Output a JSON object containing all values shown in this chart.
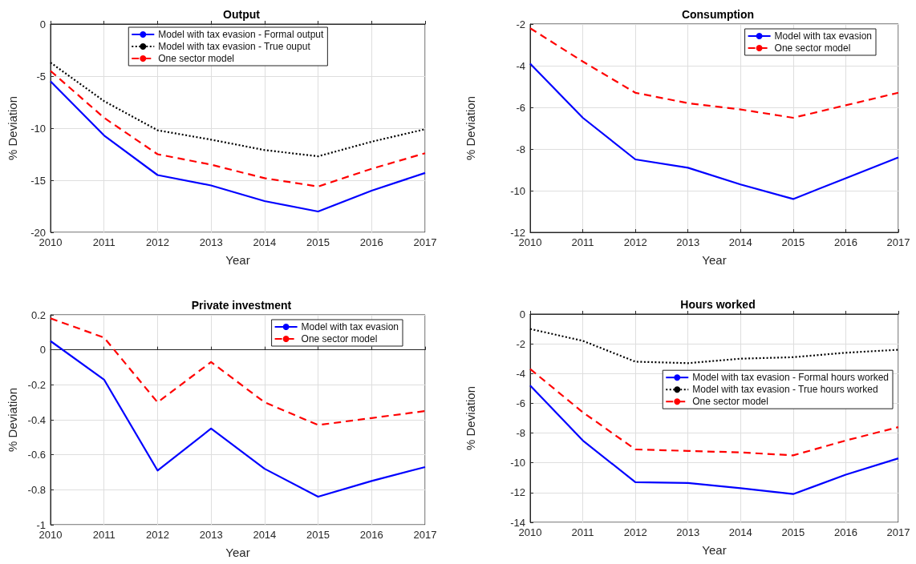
{
  "chart_data": [
    {
      "type": "line",
      "title": "Output",
      "xlabel": "Year",
      "ylabel": "% Deviation",
      "x": [
        2010,
        2011,
        2012,
        2013,
        2014,
        2015,
        2016,
        2017
      ],
      "xlim": [
        2010,
        2017
      ],
      "xticks": [
        2010,
        2011,
        2012,
        2013,
        2014,
        2015,
        2016,
        2017
      ],
      "ylim": [
        -20,
        0
      ],
      "yticks": [
        -20,
        -15,
        -10,
        -5,
        0
      ],
      "grid": true,
      "legend": "top",
      "marker": "none",
      "series": [
        {
          "name": "Model with tax evasion - Formal output",
          "color": "#0000ff",
          "line_style": "solid",
          "values": [
            -5.5,
            -10.7,
            -14.5,
            -15.5,
            -17.0,
            -18.0,
            -16.0,
            -14.3
          ]
        },
        {
          "name": "Model with tax evasion - True ouput",
          "color": "#000000",
          "line_style": "dotted",
          "values": [
            -3.7,
            -7.4,
            -10.2,
            -11.1,
            -12.1,
            -12.7,
            -11.3,
            -10.1
          ]
        },
        {
          "name": "One sector model",
          "color": "#ff0000",
          "line_style": "dashed",
          "values": [
            -4.5,
            -9.0,
            -12.5,
            -13.5,
            -14.8,
            -15.6,
            -13.9,
            -12.4
          ]
        }
      ]
    },
    {
      "type": "line",
      "title": "Consumption",
      "xlabel": "Year",
      "ylabel": "% Deviation",
      "x": [
        2010,
        2011,
        2012,
        2013,
        2014,
        2015,
        2016,
        2017
      ],
      "xlim": [
        2010,
        2017
      ],
      "xticks": [
        2010,
        2011,
        2012,
        2013,
        2014,
        2015,
        2016,
        2017
      ],
      "ylim": [
        -12,
        -2
      ],
      "yticks": [
        -12,
        -10,
        -8,
        -6,
        -4,
        -2
      ],
      "grid": true,
      "legend": "top right",
      "marker": "none",
      "series": [
        {
          "name": "Model with tax evasion",
          "color": "#0000ff",
          "line_style": "solid",
          "values": [
            -3.9,
            -6.5,
            -8.5,
            -8.9,
            -9.7,
            -10.4,
            -9.4,
            -8.4
          ]
        },
        {
          "name": "One sector model",
          "color": "#ff0000",
          "line_style": "dashed",
          "values": [
            -2.2,
            -3.8,
            -5.3,
            -5.8,
            -6.1,
            -6.5,
            -5.9,
            -5.3
          ]
        }
      ]
    },
    {
      "type": "line",
      "title": "Private investment",
      "xlabel": "Year",
      "ylabel": "% Deviation",
      "x": [
        2010,
        2011,
        2012,
        2013,
        2014,
        2015,
        2016,
        2017
      ],
      "xlim": [
        2010,
        2017
      ],
      "xticks": [
        2010,
        2011,
        2012,
        2013,
        2014,
        2015,
        2016,
        2017
      ],
      "ylim": [
        -1,
        0.2
      ],
      "yticks": [
        -1,
        -0.8,
        -0.6,
        -0.4,
        -0.2,
        0,
        0.2
      ],
      "grid": true,
      "legend": "top right",
      "marker": "none",
      "series": [
        {
          "name": "Model with tax evasion",
          "color": "#0000ff",
          "line_style": "solid",
          "values": [
            0.05,
            -0.17,
            -0.69,
            -0.45,
            -0.68,
            -0.84,
            -0.75,
            -0.67
          ]
        },
        {
          "name": "One sector model",
          "color": "#ff0000",
          "line_style": "dashed",
          "values": [
            0.18,
            0.07,
            -0.3,
            -0.07,
            -0.3,
            -0.43,
            -0.39,
            -0.35
          ]
        }
      ]
    },
    {
      "type": "line",
      "title": "Hours worked",
      "xlabel": "Year",
      "ylabel": "% Deviation",
      "x": [
        2010,
        2011,
        2012,
        2013,
        2014,
        2015,
        2016,
        2017
      ],
      "xlim": [
        2010,
        2017
      ],
      "xticks": [
        2010,
        2011,
        2012,
        2013,
        2014,
        2015,
        2016,
        2017
      ],
      "ylim": [
        -14,
        0
      ],
      "yticks": [
        -14,
        -12,
        -10,
        -8,
        -6,
        -4,
        -2,
        0
      ],
      "grid": true,
      "legend": "right",
      "marker": "none",
      "series": [
        {
          "name": "Model with tax evasion - Formal hours worked",
          "color": "#0000ff",
          "line_style": "solid",
          "values": [
            -4.8,
            -8.5,
            -11.3,
            -11.35,
            -11.7,
            -12.1,
            -10.8,
            -9.7
          ]
        },
        {
          "name": "Model with tax evasion - True hours worked",
          "color": "#000000",
          "line_style": "dotted",
          "values": [
            -1.0,
            -1.8,
            -3.2,
            -3.3,
            -3.0,
            -2.9,
            -2.6,
            -2.4
          ]
        },
        {
          "name": "One sector model",
          "color": "#ff0000",
          "line_style": "dashed",
          "values": [
            -3.7,
            -6.6,
            -9.1,
            -9.2,
            -9.3,
            -9.5,
            -8.5,
            -7.6
          ]
        }
      ]
    }
  ]
}
